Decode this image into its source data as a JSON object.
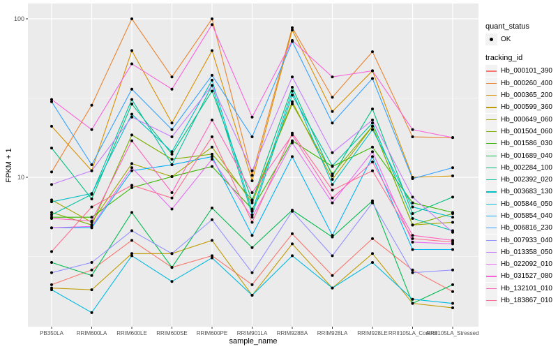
{
  "chart_data": {
    "type": "line",
    "title": "",
    "xlabel": "sample_name",
    "ylabel": "FPKM + 1",
    "y_scale": "log10",
    "ylim": [
      1.3,
      135
    ],
    "y_ticks": [
      10,
      100
    ],
    "y_tick_labels": [
      "10",
      "100"
    ],
    "grid": true,
    "legend_placement": "right",
    "categories": [
      "PB350LA",
      "RRIM600LA",
      "RRIM600LE",
      "RRIM600SE",
      "RRIM600PE",
      "RRIM901LA",
      "RRIM928BA",
      "RRIM928LA",
      "RRIM928LE",
      "RRII105LA_Control",
      "RRII105LA_Stressed"
    ],
    "legends": [
      {
        "title": "quant_status",
        "entries": [
          "OK"
        ]
      },
      {
        "title": "tracking_id"
      }
    ],
    "series": [
      {
        "name": "Hb_000101_390",
        "color": "#F8766D",
        "values": [
          2.1,
          2.6,
          4.0,
          2.7,
          3.2,
          2.1,
          4.4,
          2.4,
          4.1,
          2.6,
          1.9
        ]
      },
      {
        "name": "Hb_000260_400",
        "color": "#EA8331",
        "values": [
          10.8,
          28.5,
          100,
          43,
          100,
          10.3,
          88,
          32,
          62,
          18,
          17.8
        ]
      },
      {
        "name": "Hb_000365_200",
        "color": "#D89000",
        "values": [
          21,
          11,
          63,
          22,
          63,
          9.5,
          85,
          26,
          47,
          10,
          10.2
        ]
      },
      {
        "name": "Hb_000599_360",
        "color": "#C09B00",
        "values": [
          2.0,
          1.95,
          3.3,
          3.3,
          4.0,
          1.8,
          3.8,
          2.0,
          3.3,
          1.6,
          1.5
        ]
      },
      {
        "name": "Hb_000649_060",
        "color": "#A3A500",
        "values": [
          7.2,
          5.2,
          12.2,
          10.1,
          15.5,
          6.9,
          30,
          9.7,
          21,
          5.0,
          5.2
        ]
      },
      {
        "name": "Hb_001504_060",
        "color": "#7CAE00",
        "values": [
          6.0,
          5.0,
          18.5,
          13,
          14,
          7.2,
          29,
          10.5,
          21,
          5.0,
          5.9
        ]
      },
      {
        "name": "Hb_001586_030",
        "color": "#39B600",
        "values": [
          5.6,
          5.6,
          8.6,
          10.1,
          11.7,
          6.3,
          17,
          11.7,
          15.5,
          6.9,
          6.0
        ]
      },
      {
        "name": "Hb_001689_040",
        "color": "#00BB4E",
        "values": [
          2.9,
          2.4,
          6.0,
          2.7,
          6.4,
          3.6,
          6.2,
          4.2,
          7.1,
          1.6,
          2.1
        ]
      },
      {
        "name": "Hb_002284_100",
        "color": "#00BF7D",
        "values": [
          15.3,
          7.3,
          29,
          14,
          35,
          7.1,
          37,
          10.2,
          27,
          5.9,
          7.5
        ]
      },
      {
        "name": "Hb_002392_020",
        "color": "#00C1A3",
        "values": [
          5.8,
          7.8,
          31,
          12,
          38,
          5.8,
          33,
          11.8,
          22,
          5.5,
          4.6
        ]
      },
      {
        "name": "Hb_003683_130",
        "color": "#00BFC4",
        "values": [
          7.0,
          7.9,
          25,
          14.5,
          41,
          6.1,
          35,
          9.0,
          20,
          6.5,
          5.6
        ]
      },
      {
        "name": "Hb_005846_050",
        "color": "#00BAE0",
        "values": [
          1.95,
          1.4,
          3.2,
          2.2,
          3.1,
          1.8,
          3.2,
          2.0,
          2.9,
          1.7,
          1.6
        ]
      },
      {
        "name": "Hb_005854_040",
        "color": "#00B0F6",
        "values": [
          4.8,
          4.8,
          11,
          12,
          13.5,
          4.3,
          13.5,
          4.3,
          13.5,
          3.5,
          3.5
        ]
      },
      {
        "name": "Hb_006816_230",
        "color": "#35A2FF",
        "values": [
          30,
          12,
          36,
          20,
          44,
          18,
          72,
          22,
          42,
          9.8,
          11.5
        ]
      },
      {
        "name": "Hb_007933_040",
        "color": "#9590FF",
        "values": [
          2.5,
          2.9,
          4.6,
          3.3,
          5.4,
          2.5,
          6.1,
          3.2,
          6.9,
          2.5,
          2.6
        ]
      },
      {
        "name": "Hb_013358_050",
        "color": "#C77CFF",
        "values": [
          9.0,
          11,
          24,
          18,
          38,
          11,
          43,
          14.3,
          23,
          7.5,
          4.5
        ]
      },
      {
        "name": "Hb_022092_010",
        "color": "#E76BF3",
        "values": [
          4.8,
          4.9,
          11.5,
          6.3,
          13,
          5.6,
          16.5,
          6.9,
          14.5,
          3.9,
          3.8
        ]
      },
      {
        "name": "Hb_031527_080",
        "color": "#FA62DB",
        "values": [
          31,
          20,
          52,
          36,
          92,
          24,
          73,
          43,
          47,
          20,
          17.8
        ]
      },
      {
        "name": "Hb_132101_010",
        "color": "#FF62BC",
        "values": [
          5.5,
          5.3,
          17,
          8.0,
          23,
          8.0,
          18.5,
          7.4,
          12.5,
          4.3,
          4.0
        ]
      },
      {
        "name": "Hb_183867_010",
        "color": "#FF6C91",
        "values": [
          3.4,
          6.5,
          8.9,
          7.4,
          18,
          5.2,
          19,
          8.3,
          11,
          4.1,
          3.9
        ]
      }
    ]
  }
}
